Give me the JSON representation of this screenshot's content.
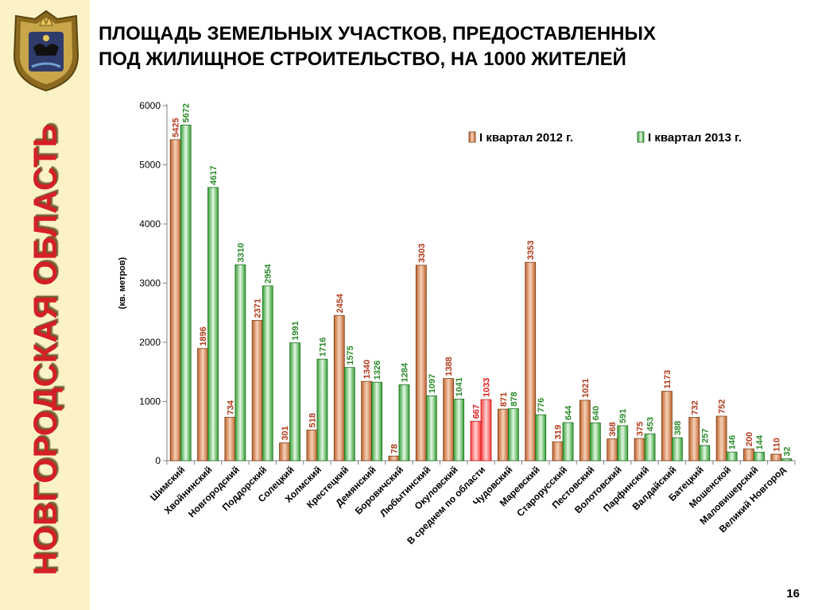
{
  "sidebar": {
    "region_name": "НОВГОРОДСКАЯ ОБЛАСТЬ",
    "emblem_icon": "novgorod-coat-of-arms-icon"
  },
  "title": {
    "line1": "ПЛОЩАДЬ ЗЕМЕЛЬНЫХ УЧАСТКОВ, ПРЕДОСТАВЛЕННЫХ",
    "line2": "ПОД ЖИЛИЩНОЕ СТРОИТЕЛЬСТВО, НА 1000 ЖИТЕЛЕЙ"
  },
  "page_number": "16",
  "colors": {
    "series_2012": "#c0622c",
    "series_2012_light": "#f6d2b8",
    "series_2013": "#33a033",
    "series_2013_light": "#e4f7e4",
    "average_highlight": "#ff3b3b",
    "average_highlight_light": "#ffd4d4",
    "label_2012": "#b03a1a",
    "label_2013": "#2a8a2a",
    "side_title": "#d51f26"
  },
  "chart_data": {
    "type": "bar",
    "ylabel": "(кв. метров)",
    "ylim": [
      0,
      6000
    ],
    "yticks": [
      0,
      1000,
      2000,
      3000,
      4000,
      5000,
      6000
    ],
    "grid": false,
    "legend_position": "top-right",
    "categories": [
      "Шимский",
      "Хвойнинский",
      "Новгородский",
      "Поддорский",
      "Солецкий",
      "Холмский",
      "Крестецкий",
      "Демянский",
      "Боровичский",
      "Любытинский",
      "Окуловский",
      "В среднем по области",
      "Чудовский",
      "Маревский",
      "Старорусский",
      "Пестовский",
      "Волотовский",
      "Парфинский",
      "Валдайский",
      "Батецкий",
      "Мошенской",
      "Маловишерский",
      "Великий Новгород"
    ],
    "highlight_category": "В среднем по области",
    "series": [
      {
        "name": "I квартал 2012 г.",
        "values": [
          5425,
          1896,
          734,
          2371,
          301,
          518,
          2454,
          1340,
          78,
          3303,
          1388,
          667,
          871,
          3353,
          319,
          1021,
          368,
          375,
          1173,
          732,
          752,
          200,
          110
        ]
      },
      {
        "name": "I квартал 2013 г.",
        "values": [
          5672,
          4617,
          3310,
          2954,
          1991,
          1716,
          1575,
          1326,
          1284,
          1097,
          1041,
          1033,
          878,
          776,
          644,
          640,
          591,
          453,
          388,
          257,
          146,
          144,
          32
        ]
      }
    ]
  }
}
